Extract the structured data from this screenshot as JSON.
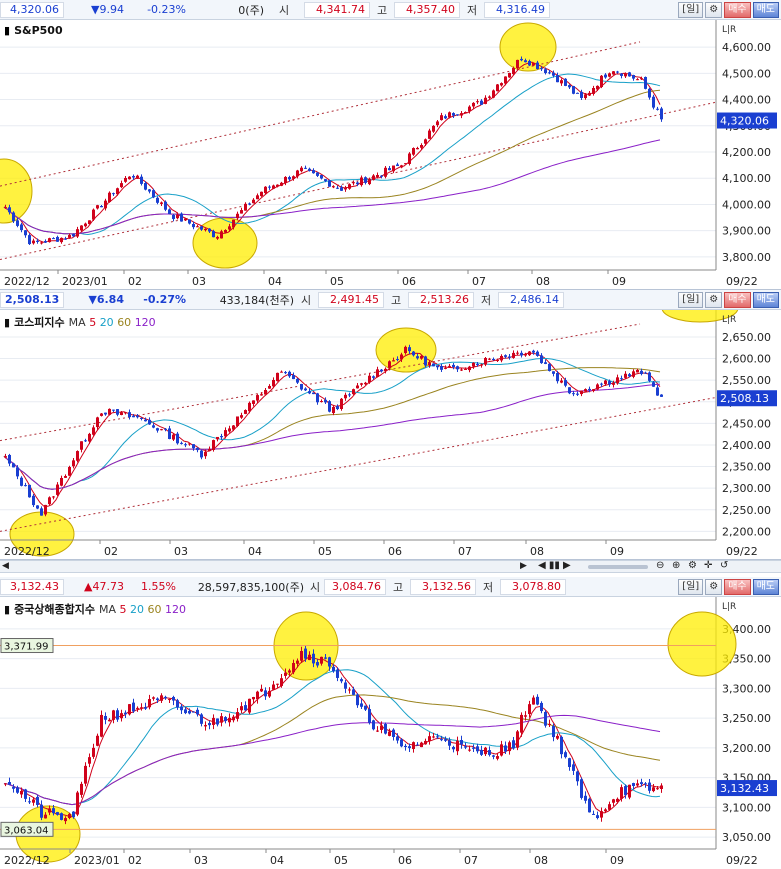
{
  "panels": [
    {
      "id": "sp500",
      "info": {
        "price": "4,320.06",
        "change": "▼9.94",
        "pct": "-0.23%",
        "volume": "0(주)",
        "open_label": "시",
        "open": "4,341.74",
        "high_label": "고",
        "high": "4,357.40",
        "low_label": "저",
        "low": "4,316.49",
        "period": "[일]",
        "buy": "매수",
        "sell": "매도"
      },
      "title": "S&P500",
      "ma_labels": [],
      "price_tag": "4,320.06",
      "y_ticks": [
        "4,600.00",
        "4,500.00",
        "4,400.00",
        "4,300.00",
        "4,200.00",
        "4,100.00",
        "4,000.00",
        "3,900.00",
        "3,800.00"
      ],
      "x_labels": [
        "2022/12",
        "2023/01",
        "02",
        "03",
        "04",
        "05",
        "06",
        "07",
        "08",
        "09",
        "09/22"
      ],
      "level_tags": []
    },
    {
      "id": "kospi",
      "info": {
        "price": "2,508.13",
        "change": "▼6.84",
        "pct": "-0.27%",
        "volume": "433,184(천주)",
        "open_label": "시",
        "open": "2,491.45",
        "high_label": "고",
        "high": "2,513.26",
        "low_label": "저",
        "low": "2,486.14",
        "period": "[일]",
        "buy": "매수",
        "sell": "매도"
      },
      "title": "코스피지수",
      "ma_labels": [
        "MA",
        "5",
        "20",
        "60",
        "120"
      ],
      "price_tag": "2,508.13",
      "y_ticks": [
        "2,650.00",
        "2,600.00",
        "2,550.00",
        "2,500.00",
        "2,450.00",
        "2,400.00",
        "2,350.00",
        "2,300.00",
        "2,250.00",
        "2,200.00"
      ],
      "x_labels": [
        "2022/12",
        "02",
        "03",
        "04",
        "05",
        "06",
        "07",
        "08",
        "09",
        "09/22"
      ],
      "level_tags": []
    },
    {
      "id": "shanghai",
      "info": {
        "price": "3,132.43",
        "change": "▲47.73",
        "pct": "1.55%",
        "volume": "28,597,835,100(주)",
        "open_label": "시",
        "open": "3,084.76",
        "high_label": "고",
        "high": "3,132.56",
        "low_label": "저",
        "low": "3,078.80",
        "period": "[일]",
        "buy": "매수",
        "sell": "매도"
      },
      "title": "중국상해종합지수",
      "ma_labels": [
        "MA",
        "5",
        "20",
        "60",
        "120"
      ],
      "price_tag": "3,132.43",
      "y_ticks": [
        "3,400.00",
        "3,350.00",
        "3,300.00",
        "3,250.00",
        "3,200.00",
        "3,150.00",
        "3,100.00",
        "3,050.00"
      ],
      "x_labels": [
        "2022/12",
        "2023/01",
        "02",
        "03",
        "04",
        "05",
        "06",
        "07",
        "08",
        "09",
        "09/22"
      ],
      "level_tags": [
        "3,371.99",
        "3,063.04"
      ]
    }
  ],
  "colors": {
    "up": "#d0021b",
    "down": "#1a3fd1",
    "ma5": "#d0021b",
    "ma20": "#18a0c8",
    "ma60": "#9a8420",
    "ma120": "#8a20c8",
    "highlight": "#ffee00",
    "channel": "#b0303a",
    "level": "#f0a060"
  },
  "chart_data": [
    {
      "type": "candlestick",
      "title": "S&P500",
      "ylim": [
        3750,
        4650
      ],
      "last": 4320.06
    },
    {
      "type": "candlestick",
      "title": "코스피지수",
      "ylim": [
        2180,
        2680
      ],
      "last": 2508.13
    },
    {
      "type": "candlestick",
      "title": "중국상해종합지수",
      "ylim": [
        3030,
        3430
      ],
      "last": 3132.43,
      "levels": [
        3371.99,
        3063.04
      ]
    }
  ]
}
